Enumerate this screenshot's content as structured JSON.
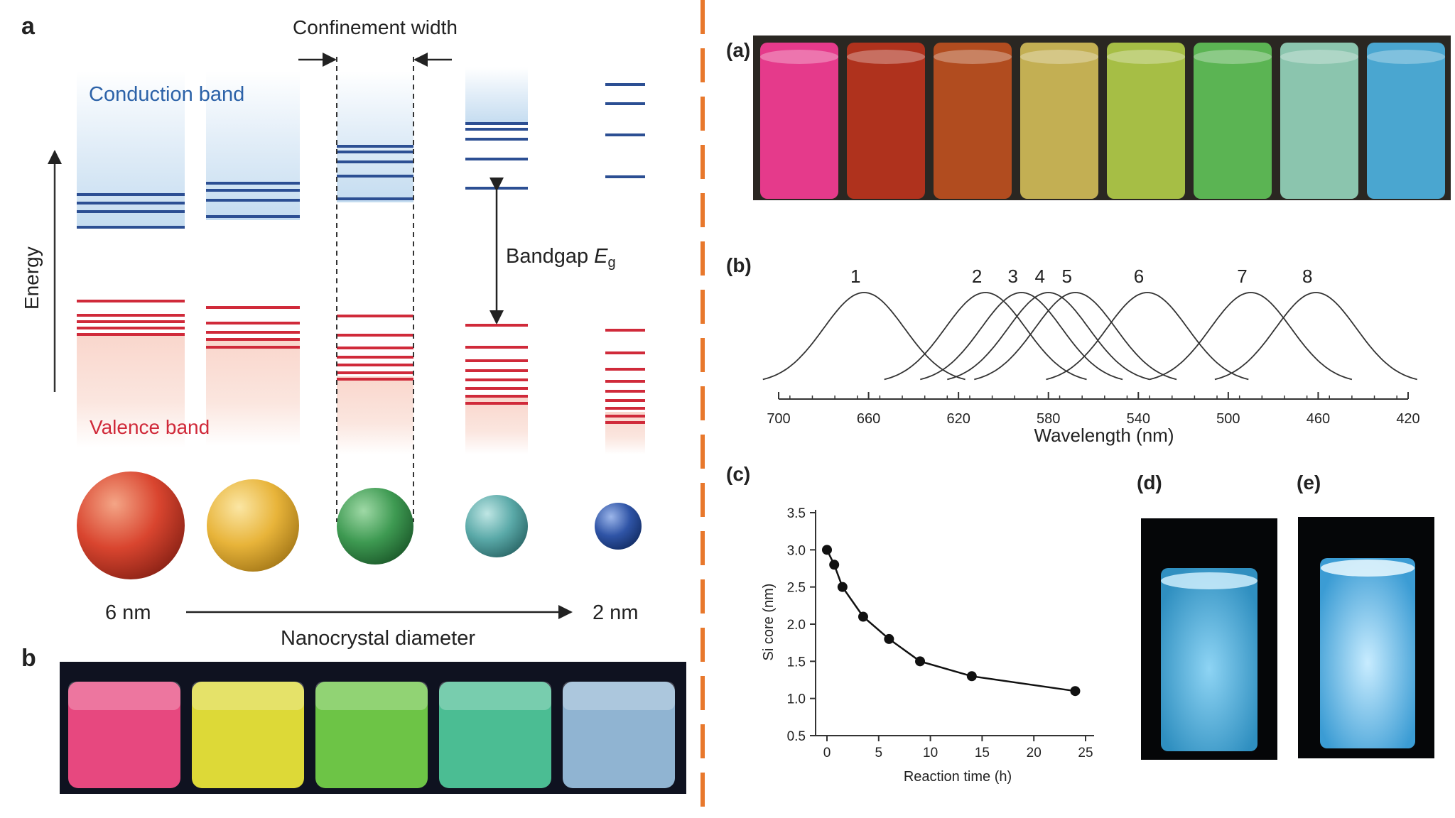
{
  "left": {
    "panel_a_label": "a",
    "panel_b_label": "b",
    "confinement_label": "Confinement width",
    "conduction_label": "Conduction band",
    "valence_label": "Valence band",
    "energy_label": "Energy",
    "bandgap_label": "Bandgap ",
    "bandgap_symbol": "E",
    "bandgap_sub": "g",
    "size_large": "6 nm",
    "size_small": "2 nm",
    "diameter_label": "Nanocrystal diameter",
    "sphere_colors": [
      "#d9452f",
      "#e8b43a",
      "#3e9a52",
      "#5aa9a8",
      "#2f54a6"
    ],
    "vial_colors": [
      "#ff4f8a",
      "#f4f03a",
      "#78d84a",
      "#52d0a0",
      "#9ec6e6"
    ]
  },
  "right": {
    "panel_a_label": "(a)",
    "panel_b_label": "(b)",
    "panel_c_label": "(c)",
    "panel_d_label": "(d)",
    "panel_e_label": "(e)",
    "vial_colors": [
      "#ff3d9a",
      "#c2341d",
      "#c4521f",
      "#d8c35a",
      "#b7d44a",
      "#62c85a",
      "#98dcc2",
      "#4fb8e8"
    ],
    "spectra_xlabel": "Wavelength (nm)",
    "spectra_ticks": [
      "700",
      "660",
      "620",
      "580",
      "540",
      "500",
      "460",
      "420"
    ],
    "spectra_peaks": [
      {
        "label": "1",
        "peak_nm": 662
      },
      {
        "label": "2",
        "peak_nm": 608
      },
      {
        "label": "3",
        "peak_nm": 592
      },
      {
        "label": "4",
        "peak_nm": 580
      },
      {
        "label": "5",
        "peak_nm": 568
      },
      {
        "label": "6",
        "peak_nm": 536
      },
      {
        "label": "7",
        "peak_nm": 490
      },
      {
        "label": "8",
        "peak_nm": 461
      }
    ]
  },
  "chart_data": {
    "type": "line",
    "title": "",
    "xlabel": "Reaction time (h)",
    "ylabel": "Si core (nm)",
    "x": [
      0,
      0.7,
      1.5,
      3.5,
      6,
      9,
      14,
      24
    ],
    "values": [
      3.0,
      2.8,
      2.5,
      2.1,
      1.8,
      1.5,
      1.3,
      1.1
    ],
    "xlim": [
      0,
      25
    ],
    "ylim": [
      0.5,
      3.5
    ],
    "xticks": [
      "0",
      "5",
      "10",
      "15",
      "20",
      "25"
    ],
    "yticks": [
      "0.5",
      "1.0",
      "1.5",
      "2.0",
      "2.5",
      "3.0",
      "3.5"
    ],
    "grid": false
  }
}
